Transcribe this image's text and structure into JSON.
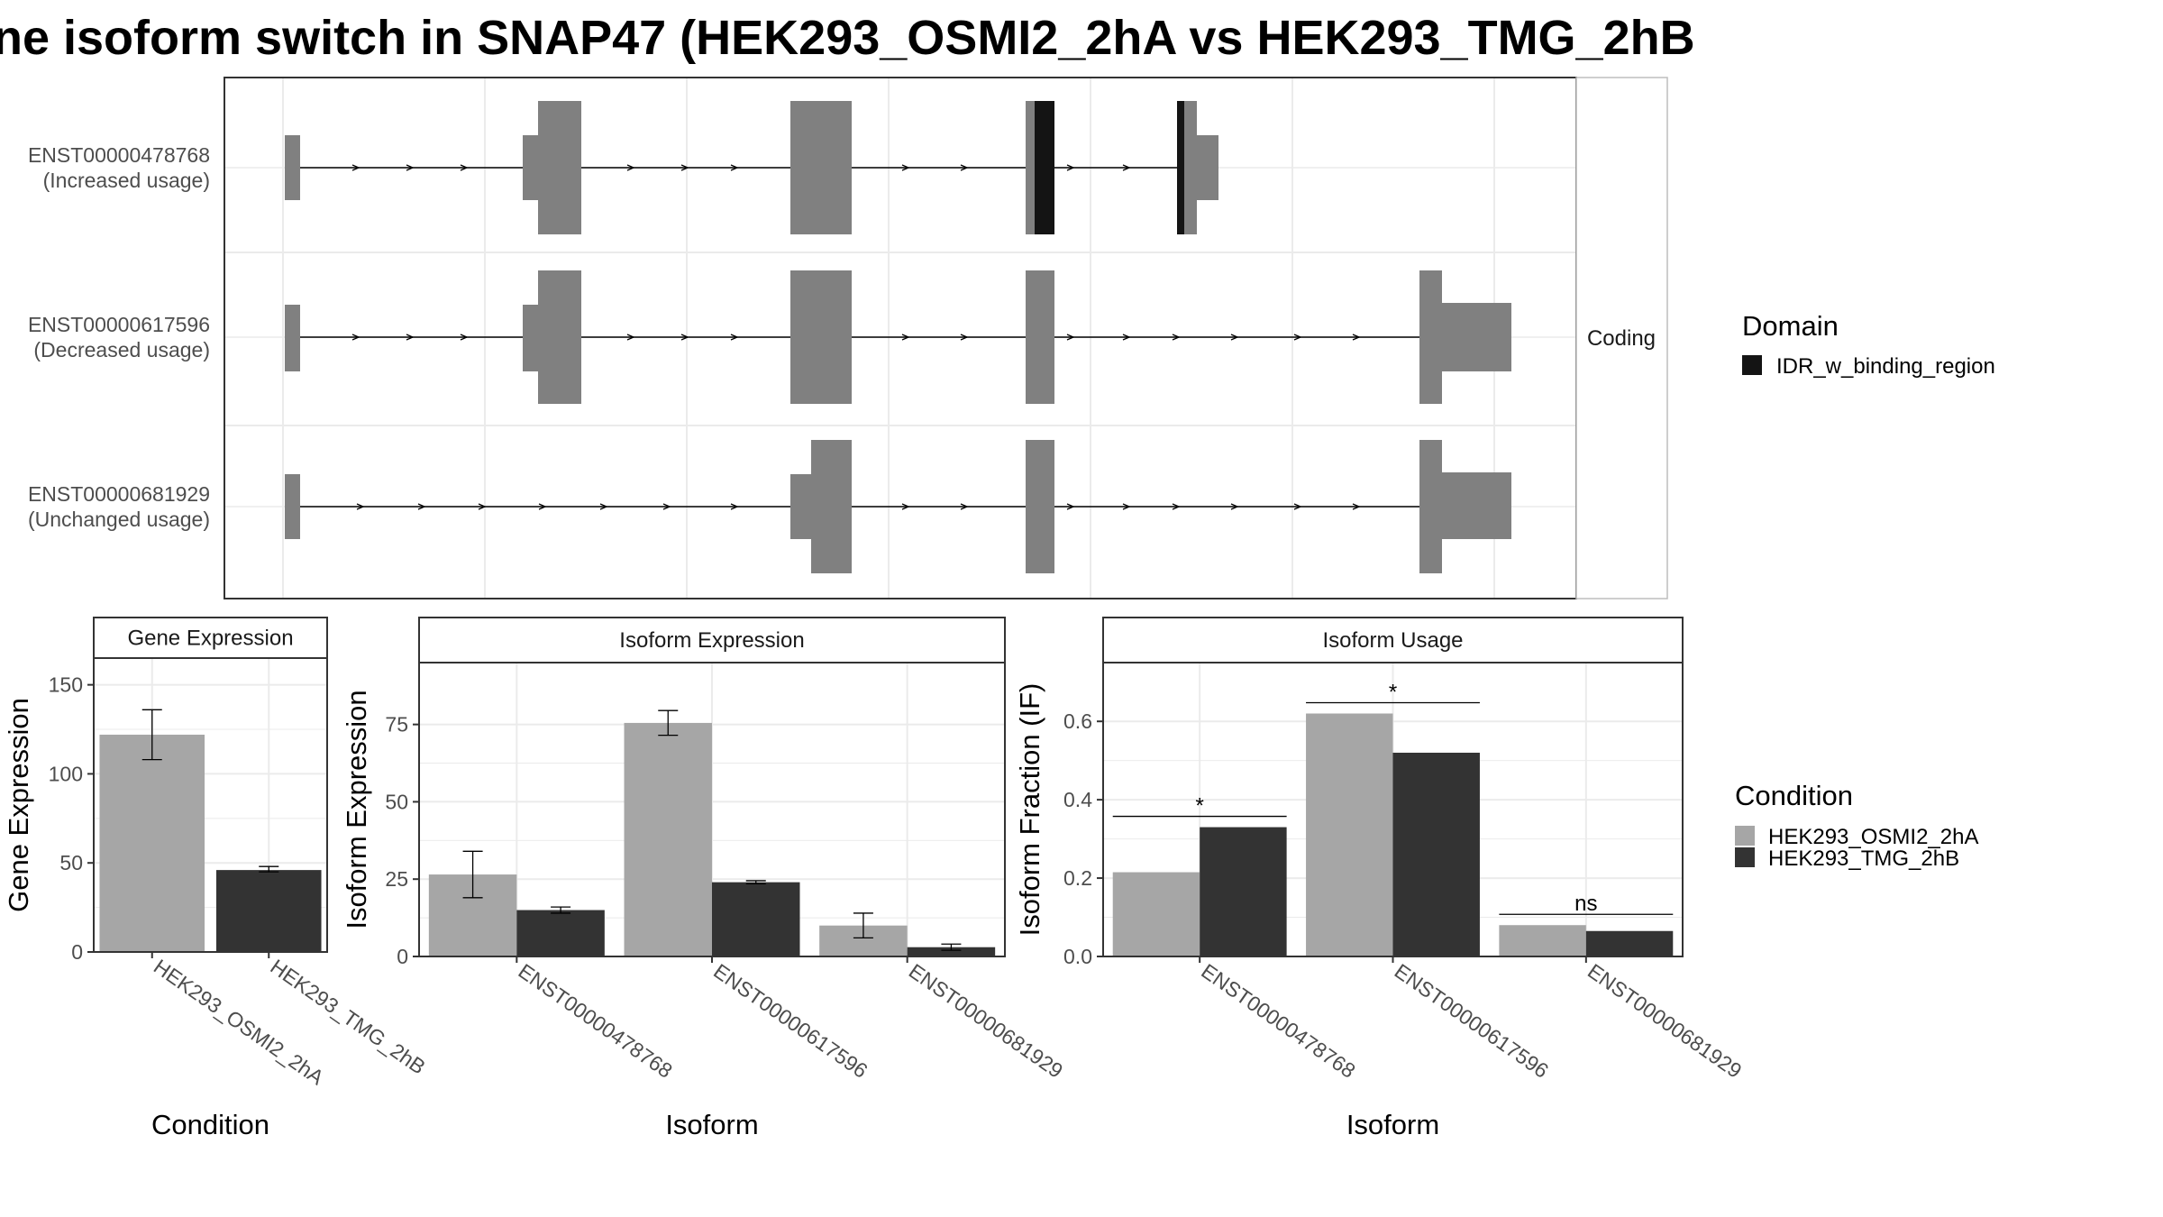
{
  "title": "ne isoform switch in SNAP47 (HEK293_OSMI2_2hA vs HEK293_TMG_2hB",
  "colors": {
    "condition_a": "#a6a6a6",
    "condition_b": "#333333",
    "exon": "#808080",
    "domain": "#141414",
    "grid": "#ebebeb",
    "border": "#333333"
  },
  "structure": {
    "strip_label": "Coding",
    "isoforms": [
      {
        "id": "ENST00000478768",
        "usage": "(Increased usage)"
      },
      {
        "id": "ENST00000617596",
        "usage": "(Decreased usage)"
      },
      {
        "id": "ENST00000681929",
        "usage": "(Unchanged usage)"
      }
    ],
    "domain_legend": {
      "title": "Domain",
      "entries": [
        "IDR_w_binding_region"
      ]
    }
  },
  "condition_legend": {
    "title": "Condition",
    "entries": [
      "HEK293_OSMI2_2hA",
      "HEK293_TMG_2hB"
    ]
  },
  "chart_data": [
    {
      "type": "bar",
      "title": "Gene Expression",
      "xlabel": "Condition",
      "ylabel": "Gene Expression",
      "categories": [
        "HEK293_OSMI2_2hA",
        "HEK293_TMG_2hB"
      ],
      "values": [
        122,
        46
      ],
      "error": [
        [
          108,
          136
        ],
        [
          45,
          48
        ]
      ],
      "ylim": [
        0,
        165
      ],
      "yticks": [
        0,
        50,
        100,
        150
      ],
      "grid": true
    },
    {
      "type": "bar",
      "title": "Isoform Expression",
      "xlabel": "Isoform",
      "ylabel": "Isoform Expression",
      "categories": [
        "ENST00000478768",
        "ENST00000617596",
        "ENST00000681929"
      ],
      "series": [
        {
          "name": "HEK293_OSMI2_2hA",
          "values": [
            26.5,
            75.5,
            10
          ],
          "error": [
            [
              19,
              34
            ],
            [
              71.5,
              79.5
            ],
            [
              6,
              14
            ]
          ]
        },
        {
          "name": "HEK293_TMG_2hB",
          "values": [
            15,
            24,
            3
          ],
          "error": [
            [
              14,
              16
            ],
            [
              23.5,
              24.5
            ],
            [
              2,
              4
            ]
          ]
        }
      ],
      "ylim": [
        0,
        95
      ],
      "yticks": [
        0,
        25,
        50,
        75
      ],
      "grid": true
    },
    {
      "type": "bar",
      "title": "Isoform Usage",
      "xlabel": "Isoform",
      "ylabel": "Isoform Fraction (IF)",
      "categories": [
        "ENST00000478768",
        "ENST00000617596",
        "ENST00000681929"
      ],
      "series": [
        {
          "name": "HEK293_OSMI2_2hA",
          "values": [
            0.215,
            0.62,
            0.08
          ]
        },
        {
          "name": "HEK293_TMG_2hB",
          "values": [
            0.33,
            0.52,
            0.065
          ]
        }
      ],
      "significance": [
        "*",
        "*",
        "ns"
      ],
      "ylim": [
        0,
        0.75
      ],
      "yticks": [
        "0.0",
        "0.2",
        "0.4",
        "0.6"
      ],
      "grid": true
    }
  ]
}
